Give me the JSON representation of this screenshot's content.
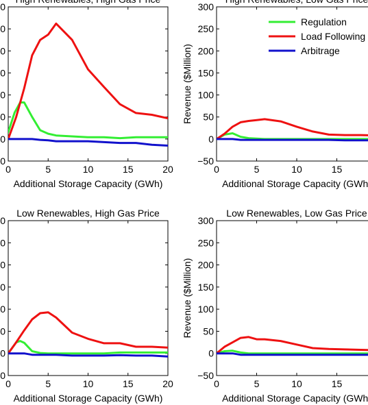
{
  "chart_data": [
    {
      "type": "line",
      "title": "High Renewables, High Gas Price",
      "xlabel": "Additional Storage Capacity (GWh)",
      "ylabel": "",
      "xlim": [
        0,
        20
      ],
      "ylim": [
        -50,
        300
      ],
      "xticks": [
        "0",
        "5",
        "10",
        "15",
        "20"
      ],
      "yticks": [
        "0",
        "0",
        "0",
        "0",
        "0",
        "0",
        "0",
        "0"
      ],
      "legend": [],
      "series": [
        {
          "name": "Regulation",
          "color": "#33ee33",
          "x": [
            0,
            0.8,
            1.5,
            2,
            3,
            4,
            5,
            6,
            8,
            10,
            12,
            14,
            16,
            18,
            20
          ],
          "values": [
            15,
            60,
            83,
            83,
            50,
            20,
            12,
            8,
            6,
            4,
            4,
            2,
            4,
            4,
            4
          ]
        },
        {
          "name": "Load Following",
          "color": "#ee1111",
          "x": [
            0,
            1,
            2,
            3,
            4,
            5,
            6,
            8,
            10,
            12,
            14,
            16,
            18,
            20
          ],
          "values": [
            0,
            50,
            115,
            190,
            225,
            237,
            262,
            225,
            158,
            118,
            79,
            59,
            55,
            47
          ]
        },
        {
          "name": "Arbitrage",
          "color": "#1111cc",
          "x": [
            0,
            1,
            2,
            3,
            4,
            5,
            6,
            8,
            10,
            12,
            14,
            16,
            18,
            20
          ],
          "values": [
            0,
            0,
            0,
            0,
            -2,
            -3,
            -5,
            -5,
            -5,
            -7,
            -9,
            -9,
            -13,
            -15
          ]
        }
      ]
    },
    {
      "type": "line",
      "title": "High Renewables, Low Gas Price",
      "xlabel": "Additional Storage Capacity (GWh)",
      "ylabel": "Revenue ($Million)",
      "xlim": [
        0,
        20
      ],
      "ylim": [
        -50,
        300
      ],
      "xticks": [
        "0",
        "5",
        "10",
        "15"
      ],
      "yticks": [
        "−50",
        "0",
        "50",
        "100",
        "150",
        "200",
        "250",
        "300"
      ],
      "legend": [
        "Regulation",
        "Load Following",
        "Arbitrage"
      ],
      "legend_position": "top-right",
      "series": [
        {
          "name": "Regulation",
          "color": "#33ee33",
          "x": [
            0,
            1,
            2,
            3,
            4,
            5,
            6,
            8,
            10,
            12,
            14,
            16,
            18,
            20
          ],
          "values": [
            0,
            10,
            13,
            5,
            2,
            1,
            0,
            0,
            0,
            0,
            0,
            0,
            0,
            0
          ]
        },
        {
          "name": "Load Following",
          "color": "#ee1111",
          "x": [
            0,
            1,
            2,
            3,
            4,
            5,
            6,
            8,
            10,
            12,
            14,
            16,
            18,
            20
          ],
          "values": [
            0,
            12,
            28,
            38,
            41,
            43,
            45,
            40,
            28,
            17,
            10,
            9,
            9,
            8
          ]
        },
        {
          "name": "Arbitrage",
          "color": "#1111cc",
          "x": [
            0,
            1,
            2,
            3,
            4,
            5,
            6,
            8,
            10,
            12,
            14,
            16,
            18,
            20
          ],
          "values": [
            0,
            0,
            0,
            -2,
            -2,
            -2,
            -2,
            -2,
            -2,
            -2,
            -2,
            -3,
            -3,
            -3
          ]
        }
      ]
    },
    {
      "type": "line",
      "title": "Low Renewables, High Gas Price",
      "xlabel": "Additional Storage Capacity (GWh)",
      "ylabel": "",
      "xlim": [
        0,
        20
      ],
      "ylim": [
        -50,
        300
      ],
      "xticks": [
        "0",
        "5",
        "10",
        "15",
        "20"
      ],
      "yticks": [
        "0",
        "0",
        "0",
        "0",
        "0",
        "0",
        "0",
        "0"
      ],
      "legend": [],
      "series": [
        {
          "name": "Regulation",
          "color": "#33ee33",
          "x": [
            0,
            1,
            1.5,
            2,
            3,
            4,
            5,
            6,
            8,
            10,
            12,
            14,
            16,
            18,
            20
          ],
          "values": [
            0,
            25,
            28,
            24,
            5,
            1,
            0,
            0,
            0,
            0,
            0,
            2,
            2,
            2,
            2
          ]
        },
        {
          "name": "Load Following",
          "color": "#ee1111",
          "x": [
            0,
            1,
            2,
            3,
            4,
            5,
            6,
            8,
            10,
            12,
            14,
            16,
            18,
            20
          ],
          "values": [
            0,
            25,
            52,
            77,
            91,
            93,
            81,
            47,
            33,
            23,
            23,
            15,
            15,
            13
          ]
        },
        {
          "name": "Arbitrage",
          "color": "#1111cc",
          "x": [
            0,
            1,
            2,
            3,
            4,
            5,
            6,
            8,
            10,
            12,
            14,
            16,
            18,
            20
          ],
          "values": [
            0,
            0,
            0,
            -3,
            -3,
            -3,
            -3,
            -5,
            -5,
            -5,
            -4,
            -5,
            -5,
            -7
          ]
        }
      ]
    },
    {
      "type": "line",
      "title": "Low Renewables, Low Gas Price",
      "xlabel": "Additional Storage Capacity (GWh)",
      "ylabel": "Revenue ($Million)",
      "xlim": [
        0,
        20
      ],
      "ylim": [
        -50,
        300
      ],
      "xticks": [
        "0",
        "5",
        "10",
        "15"
      ],
      "yticks": [
        "−50",
        "0",
        "50",
        "100",
        "150",
        "200",
        "250",
        "300"
      ],
      "legend": [],
      "series": [
        {
          "name": "Regulation",
          "color": "#33ee33",
          "x": [
            0,
            1,
            2,
            3,
            4,
            5,
            6,
            8,
            10,
            12,
            14,
            16,
            18,
            20
          ],
          "values": [
            0,
            5,
            6,
            2,
            0,
            0,
            0,
            0,
            0,
            0,
            0,
            0,
            0,
            0
          ]
        },
        {
          "name": "Load Following",
          "color": "#ee1111",
          "x": [
            0,
            1,
            2,
            3,
            4,
            5,
            6,
            8,
            10,
            12,
            14,
            16,
            18,
            20
          ],
          "values": [
            0,
            15,
            25,
            35,
            37,
            32,
            32,
            28,
            20,
            12,
            10,
            9,
            8,
            7
          ]
        },
        {
          "name": "Arbitrage",
          "color": "#1111cc",
          "x": [
            0,
            1,
            2,
            3,
            4,
            5,
            6,
            8,
            10,
            12,
            14,
            16,
            18,
            20
          ],
          "values": [
            0,
            0,
            0,
            -3,
            -3,
            -3,
            -3,
            -3,
            -3,
            -3,
            -3,
            -3,
            -3,
            -3
          ]
        }
      ]
    }
  ]
}
